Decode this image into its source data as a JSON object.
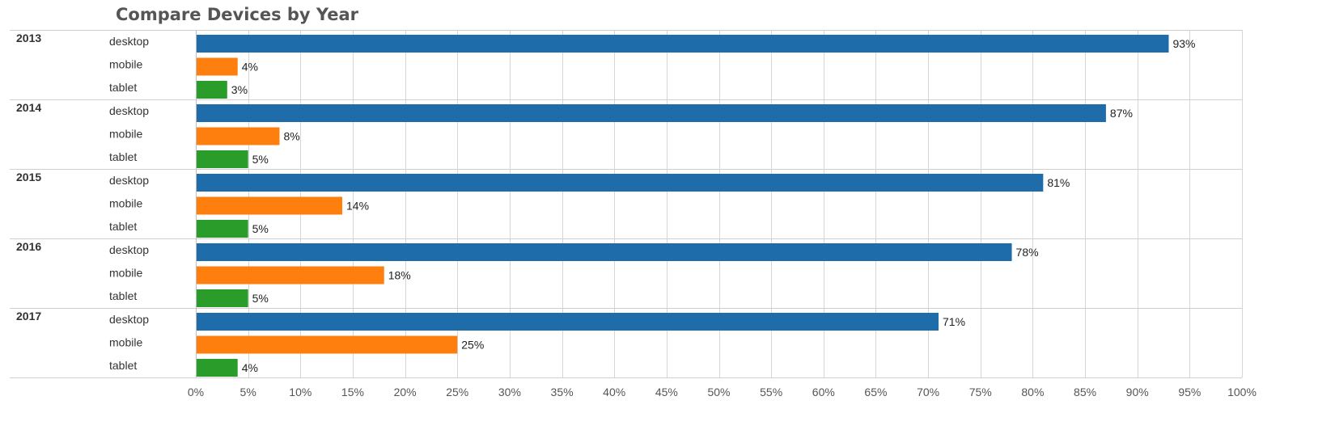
{
  "chart_data": {
    "type": "bar",
    "orientation": "horizontal",
    "title": "Compare Devices by Year",
    "groups": [
      "2013",
      "2014",
      "2015",
      "2016",
      "2017"
    ],
    "categories": [
      "desktop",
      "mobile",
      "tablet"
    ],
    "colors": {
      "desktop": "#1f6cab",
      "mobile": "#ff7f0e",
      "tablet": "#2a9c2a"
    },
    "series": [
      {
        "group": "2013",
        "values": [
          93,
          4,
          3
        ],
        "labels": [
          "93%",
          "4%",
          "3%"
        ]
      },
      {
        "group": "2014",
        "values": [
          87,
          8,
          5
        ],
        "labels": [
          "87%",
          "8%",
          "5%"
        ]
      },
      {
        "group": "2015",
        "values": [
          81,
          14,
          5
        ],
        "labels": [
          "81%",
          "14%",
          "5%"
        ]
      },
      {
        "group": "2016",
        "values": [
          78,
          18,
          5
        ],
        "labels": [
          "78%",
          "18%",
          "5%"
        ]
      },
      {
        "group": "2017",
        "values": [
          71,
          25,
          4
        ],
        "labels": [
          "71%",
          "25%",
          "4%"
        ]
      }
    ],
    "xlim": [
      0,
      100
    ],
    "xticks": [
      0,
      5,
      10,
      15,
      20,
      25,
      30,
      35,
      40,
      45,
      50,
      55,
      60,
      65,
      70,
      75,
      80,
      85,
      90,
      95,
      100
    ],
    "xtick_labels": [
      "0%",
      "5%",
      "10%",
      "15%",
      "20%",
      "25%",
      "30%",
      "35%",
      "40%",
      "45%",
      "50%",
      "55%",
      "60%",
      "65%",
      "70%",
      "75%",
      "80%",
      "85%",
      "90%",
      "95%",
      "100%"
    ],
    "grid": true,
    "legend": "none"
  }
}
